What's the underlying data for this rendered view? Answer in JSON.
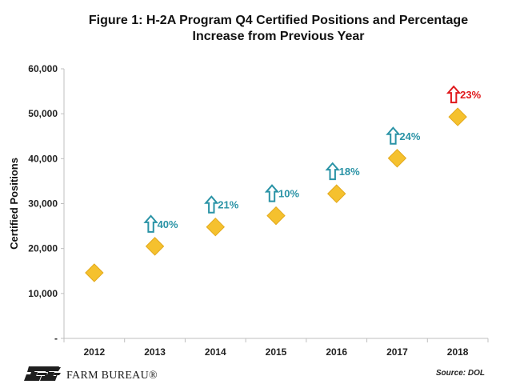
{
  "chart_data": {
    "type": "scatter",
    "title_lines": [
      "Figure 1: H-2A Program Q4 Certified Positions and Percentage",
      "Increase from Previous Year"
    ],
    "ylabel": "Certified Positions",
    "xlabel": "",
    "ylim": [
      0,
      60000
    ],
    "yticks": [
      0,
      10000,
      20000,
      30000,
      40000,
      50000,
      60000
    ],
    "ytick_labels": [
      "-",
      "10,000",
      "20,000",
      "30,000",
      "40,000",
      "50,000",
      "60,000"
    ],
    "categories": [
      "2012",
      "2013",
      "2014",
      "2015",
      "2016",
      "2017",
      "2018"
    ],
    "values": [
      14600,
      20500,
      24800,
      27300,
      32200,
      40100,
      49300
    ],
    "pct_change": [
      null,
      "40%",
      "21%",
      "10%",
      "18%",
      "24%",
      "23%"
    ],
    "pct_highlight": [
      false,
      false,
      false,
      false,
      false,
      false,
      true
    ],
    "grid": false,
    "marker_color": "#F5C12E",
    "arrow_color": "#2A93A6",
    "highlight_color": "#E0191C"
  },
  "footer": {
    "logo_text": "FARM BUREAU®",
    "source": "Source: DOL"
  }
}
